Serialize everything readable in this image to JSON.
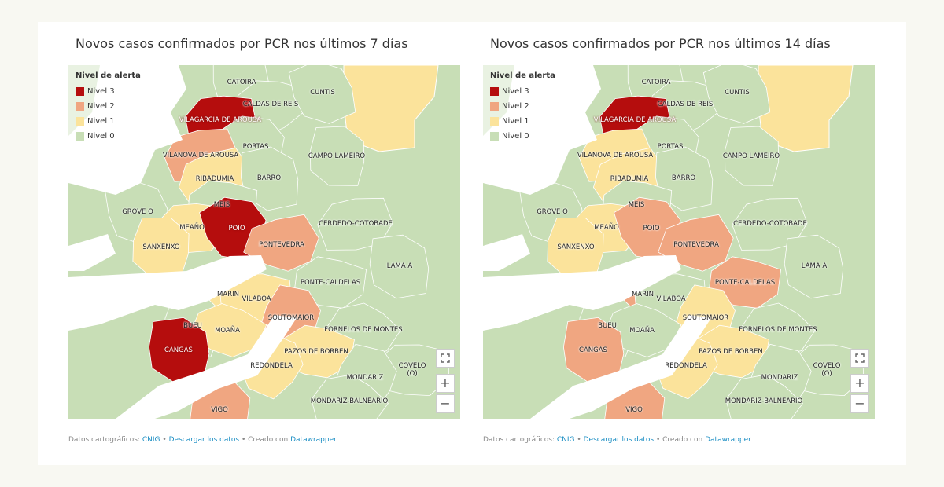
{
  "maps": [
    {
      "title": "Novos casos confirmados por PCR nos últimos 7 días",
      "legend": {
        "title": "Nivel de alerta",
        "items": [
          {
            "label": "Nivel 3",
            "level": 3,
            "color": "#b50d0d"
          },
          {
            "label": "Nivel 2",
            "level": 2,
            "color": "#f0a681"
          },
          {
            "label": "Nivel 1",
            "level": 1,
            "color": "#fbe39b"
          },
          {
            "label": "Nivel 0",
            "level": 0,
            "color": "#c8deb6"
          }
        ]
      },
      "labels": [
        {
          "text": "CATOIRA",
          "level": 0
        },
        {
          "text": "CALDAS DE REIS",
          "level": 0
        },
        {
          "text": "CUNTIS",
          "level": 0
        },
        {
          "text": "VILAGARCIA DE AROUSA",
          "level": 3
        },
        {
          "text": "PORTAS",
          "level": 0
        },
        {
          "text": "VILANOVA DE AROUSA",
          "level": 2
        },
        {
          "text": "CAMPO LAMEIRO",
          "level": 0
        },
        {
          "text": "RIBADUMIA",
          "level": 1
        },
        {
          "text": "BARRO",
          "level": 0
        },
        {
          "text": "MEIS",
          "level": 0
        },
        {
          "text": "GROVE O",
          "level": 0
        },
        {
          "text": "MEAÑO",
          "level": 1
        },
        {
          "text": "POIO",
          "level": 3
        },
        {
          "text": "CERDEDO-COTOBADE",
          "level": 0
        },
        {
          "text": "SANXENXO",
          "level": 1
        },
        {
          "text": "PONTEVEDRA",
          "level": 2
        },
        {
          "text": "LAMA A",
          "level": 0
        },
        {
          "text": "PONTE-CALDELAS",
          "level": 0
        },
        {
          "text": "MARIN",
          "level": 1
        },
        {
          "text": "VILABOA",
          "level": 1
        },
        {
          "text": "SOUTOMAIOR",
          "level": 2
        },
        {
          "text": "FORNELOS DE MONTES",
          "level": 0
        },
        {
          "text": "BUEU",
          "level": 0
        },
        {
          "text": "MOAÑA",
          "level": 1
        },
        {
          "text": "CANGAS",
          "level": 3
        },
        {
          "text": "PAZOS DE BORBEN",
          "level": 1
        },
        {
          "text": "REDONDELA",
          "level": 1
        },
        {
          "text": "COVELO (O)",
          "level": 0
        },
        {
          "text": "MONDARIZ",
          "level": 0
        },
        {
          "text": "MONDARIZ-BALNEARIO",
          "level": 0
        },
        {
          "text": "VIGO",
          "level": 2
        }
      ],
      "controls": [
        "+",
        "−"
      ],
      "footer": {
        "prefix": "Datos cartográficos:",
        "source": "CNIG",
        "separator": "•",
        "download": "Descargar los datos",
        "created": "Creado con",
        "tool": "Datawrapper"
      }
    },
    {
      "title": "Novos casos confirmados por PCR nos últimos 14 días",
      "legend": {
        "title": "Nivel de alerta",
        "items": [
          {
            "label": "Nivel 3",
            "level": 3,
            "color": "#b50d0d"
          },
          {
            "label": "Nivel 2",
            "level": 2,
            "color": "#f0a681"
          },
          {
            "label": "Nivel 1",
            "level": 1,
            "color": "#fbe39b"
          },
          {
            "label": "Nivel 0",
            "level": 0,
            "color": "#c8deb6"
          }
        ]
      },
      "labels": [
        {
          "text": "CATOIRA",
          "level": 0
        },
        {
          "text": "CALDAS DE REIS",
          "level": 0
        },
        {
          "text": "CUNTIS",
          "level": 0
        },
        {
          "text": "VILAGARCIA DE AROUSA",
          "level": 3
        },
        {
          "text": "PORTAS",
          "level": 0
        },
        {
          "text": "VILANOVA DE AROUSA",
          "level": 1
        },
        {
          "text": "CAMPO LAMEIRO",
          "level": 0
        },
        {
          "text": "RIBADUMIA",
          "level": 1
        },
        {
          "text": "BARRO",
          "level": 0
        },
        {
          "text": "MEIS",
          "level": 0
        },
        {
          "text": "GROVE O",
          "level": 0
        },
        {
          "text": "MEAÑO",
          "level": 1
        },
        {
          "text": "POIO",
          "level": 2
        },
        {
          "text": "CERDEDO-COTOBADE",
          "level": 0
        },
        {
          "text": "SANXENXO",
          "level": 1
        },
        {
          "text": "PONTEVEDRA",
          "level": 2
        },
        {
          "text": "LAMA A",
          "level": 0
        },
        {
          "text": "PONTE-CALDELAS",
          "level": 2
        },
        {
          "text": "MARIN",
          "level": 2
        },
        {
          "text": "VILABOA",
          "level": 0
        },
        {
          "text": "SOUTOMAIOR",
          "level": 1
        },
        {
          "text": "FORNELOS DE MONTES",
          "level": 0
        },
        {
          "text": "BUEU",
          "level": 0
        },
        {
          "text": "MOAÑA",
          "level": 0
        },
        {
          "text": "CANGAS",
          "level": 2
        },
        {
          "text": "PAZOS DE BORBEN",
          "level": 1
        },
        {
          "text": "REDONDELA",
          "level": 1
        },
        {
          "text": "COVELO (O)",
          "level": 0
        },
        {
          "text": "MONDARIZ",
          "level": 0
        },
        {
          "text": "MONDARIZ-BALNEARIO",
          "level": 0
        },
        {
          "text": "VIGO",
          "level": 2
        }
      ],
      "controls": [
        "+",
        "−"
      ],
      "footer": {
        "prefix": "Datos cartográficos:",
        "source": "CNIG",
        "separator": "•",
        "download": "Descargar los datos",
        "created": "Creado con",
        "tool": "Datawrapper"
      }
    }
  ]
}
